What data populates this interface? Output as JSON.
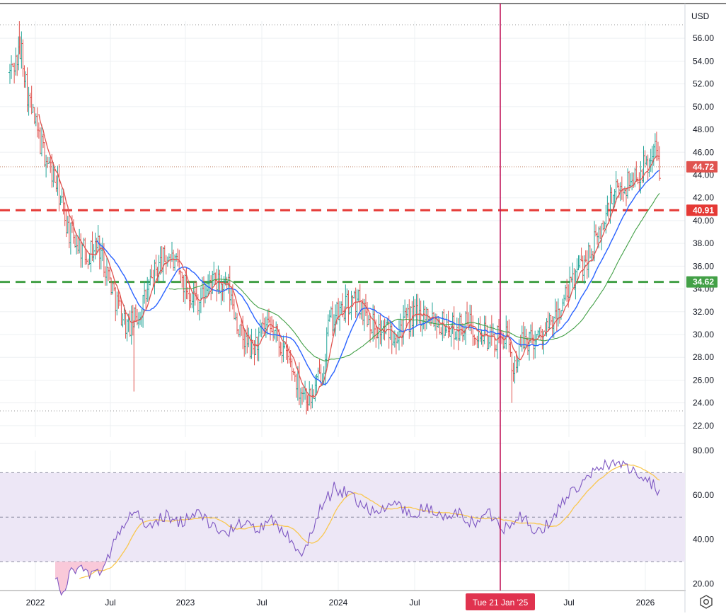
{
  "currency_label": "USD",
  "price_tags": {
    "last": "44.72",
    "resistance": "40.91",
    "support": "34.62"
  },
  "crosshair_label": "Tue 21 Jan '25",
  "icons": {
    "settings": "settings-icon"
  },
  "colors": {
    "price_bars": "#26a69a",
    "price_bars_down": "#e0534f",
    "ma_fast": "#e0534f",
    "ma_mid": "#2962ff",
    "ma_slow": "#43a047",
    "rsi": "#7e57c2",
    "rsi_ma": "#f9c74f",
    "resistance": "#e53935",
    "support": "#43a047",
    "crosshair": "#c2185b",
    "rsi_band": "#ede7f6"
  },
  "chart_data": {
    "type": "ohlc",
    "x_axis_ticks": [
      "2022",
      "Jul",
      "2023",
      "Jul",
      "2024",
      "Jul",
      "Jul",
      "2026"
    ],
    "price_axis_ticks": [
      "56.00",
      "54.00",
      "52.00",
      "50.00",
      "48.00",
      "46.00",
      "44.00",
      "42.00",
      "40.00",
      "38.00",
      "36.00",
      "34.00",
      "32.00",
      "30.00",
      "28.00",
      "26.00",
      "24.00",
      "22.00"
    ],
    "price_range": [
      21.0,
      57.5
    ],
    "rsi_axis_ticks": [
      "80.00",
      "60.00",
      "40.00",
      "20.00"
    ],
    "rsi_range": [
      17,
      80
    ],
    "rsi_bands": [
      30,
      50,
      70
    ],
    "horizontal_lines": [
      {
        "value": 40.91,
        "style": "dashed",
        "color": "red"
      },
      {
        "value": 34.62,
        "style": "dashed",
        "color": "green"
      }
    ],
    "period_high": 57.5,
    "period_low": 23.3,
    "last_price": 44.72,
    "price_keypoints": [
      {
        "t": 0.0,
        "v": 53
      },
      {
        "t": 1.0,
        "v": 55
      },
      {
        "t": 1.5,
        "v": 51
      },
      {
        "t": 2.5,
        "v": 47
      },
      {
        "t": 4.0,
        "v": 43
      },
      {
        "t": 5.0,
        "v": 39
      },
      {
        "t": 6.5,
        "v": 37
      },
      {
        "t": 7.5,
        "v": 38
      },
      {
        "t": 9.0,
        "v": 33
      },
      {
        "t": 10.0,
        "v": 30.5
      },
      {
        "t": 11.0,
        "v": 32
      },
      {
        "t": 12.5,
        "v": 36
      },
      {
        "t": 13.5,
        "v": 37
      },
      {
        "t": 15.0,
        "v": 34
      },
      {
        "t": 16.0,
        "v": 33
      },
      {
        "t": 17.0,
        "v": 34.5
      },
      {
        "t": 18.5,
        "v": 34
      },
      {
        "t": 19.5,
        "v": 30
      },
      {
        "t": 20.5,
        "v": 28.5
      },
      {
        "t": 21.5,
        "v": 30.5
      },
      {
        "t": 22.5,
        "v": 30
      },
      {
        "t": 23.5,
        "v": 28
      },
      {
        "t": 24.5,
        "v": 25.5
      },
      {
        "t": 25.5,
        "v": 24.3
      },
      {
        "t": 26.5,
        "v": 27
      },
      {
        "t": 27.0,
        "v": 31
      },
      {
        "t": 28.5,
        "v": 32.5
      },
      {
        "t": 29.5,
        "v": 33
      },
      {
        "t": 31.0,
        "v": 30.5
      },
      {
        "t": 32.5,
        "v": 30.2
      },
      {
        "t": 34.0,
        "v": 31.5
      },
      {
        "t": 35.5,
        "v": 32
      },
      {
        "t": 36.5,
        "v": 31
      },
      {
        "t": 37.5,
        "v": 30.5
      },
      {
        "t": 39.0,
        "v": 31
      },
      {
        "t": 40.0,
        "v": 30
      },
      {
        "t": 41.0,
        "v": 29.5
      },
      {
        "t": 42.0,
        "v": 30
      },
      {
        "t": 42.5,
        "v": 27
      },
      {
        "t": 43.5,
        "v": 29.5
      },
      {
        "t": 45.0,
        "v": 30
      },
      {
        "t": 46.0,
        "v": 31
      },
      {
        "t": 47.0,
        "v": 33
      },
      {
        "t": 48.0,
        "v": 35.5
      },
      {
        "t": 49.0,
        "v": 37
      },
      {
        "t": 50.0,
        "v": 39
      },
      {
        "t": 51.0,
        "v": 42
      },
      {
        "t": 52.0,
        "v": 43
      },
      {
        "t": 53.0,
        "v": 44
      },
      {
        "t": 54.0,
        "v": 45
      },
      {
        "t": 54.6,
        "v": 46.5
      },
      {
        "t": 55.0,
        "v": 44.72
      }
    ],
    "rsi_keypoints": [
      {
        "t": 0.0,
        "v": 22
      },
      {
        "t": 0.5,
        "v": 16
      },
      {
        "t": 1.0,
        "v": 28
      },
      {
        "t": 2.0,
        "v": 25
      },
      {
        "t": 3.0,
        "v": 27
      },
      {
        "t": 4.0,
        "v": 41
      },
      {
        "t": 5.0,
        "v": 53
      },
      {
        "t": 6.0,
        "v": 45
      },
      {
        "t": 7.0,
        "v": 51
      },
      {
        "t": 8.0,
        "v": 47
      },
      {
        "t": 9.0,
        "v": 53
      },
      {
        "t": 10.0,
        "v": 47
      },
      {
        "t": 11.0,
        "v": 42
      },
      {
        "t": 12.0,
        "v": 48
      },
      {
        "t": 13.0,
        "v": 44
      },
      {
        "t": 14.0,
        "v": 48
      },
      {
        "t": 15.0,
        "v": 42
      },
      {
        "t": 16.0,
        "v": 33
      },
      {
        "t": 17.0,
        "v": 52
      },
      {
        "t": 18.0,
        "v": 63
      },
      {
        "t": 19.0,
        "v": 60
      },
      {
        "t": 20.0,
        "v": 55
      },
      {
        "t": 21.0,
        "v": 52
      },
      {
        "t": 22.0,
        "v": 57
      },
      {
        "t": 23.0,
        "v": 50
      },
      {
        "t": 24.0,
        "v": 55
      },
      {
        "t": 25.0,
        "v": 49
      },
      {
        "t": 26.0,
        "v": 52
      },
      {
        "t": 27.0,
        "v": 47
      },
      {
        "t": 28.0,
        "v": 52
      },
      {
        "t": 29.0,
        "v": 45
      },
      {
        "t": 30.0,
        "v": 52
      },
      {
        "t": 31.0,
        "v": 42
      },
      {
        "t": 32.0,
        "v": 48
      },
      {
        "t": 33.0,
        "v": 60
      },
      {
        "t": 34.0,
        "v": 64
      },
      {
        "t": 35.0,
        "v": 72
      },
      {
        "t": 36.0,
        "v": 75
      },
      {
        "t": 37.0,
        "v": 72
      },
      {
        "t": 38.0,
        "v": 69
      },
      {
        "t": 39.0,
        "v": 62
      }
    ]
  }
}
